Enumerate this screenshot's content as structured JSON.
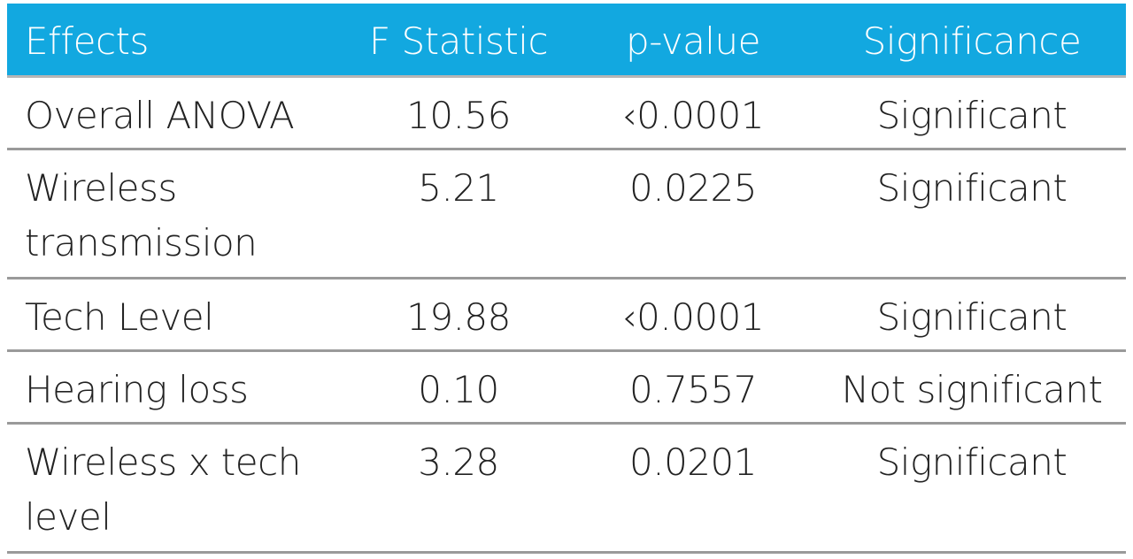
{
  "table": {
    "header": {
      "effects": "Effects",
      "f_statistic": "F Statistic",
      "p_value": "p-value",
      "significance": "Significance"
    },
    "rows": [
      {
        "effect": "Overall ANOVA",
        "f": "10.56",
        "p": "‹0.0001",
        "significance": "Significant"
      },
      {
        "effect": "Wireless transmission",
        "f": "5.21",
        "p": "0.0225",
        "significance": "Significant"
      },
      {
        "effect": "Tech Level",
        "f": "19.88",
        "p": "‹0.0001",
        "significance": "Significant"
      },
      {
        "effect": "Hearing loss",
        "f": "0.10",
        "p": "0.7557",
        "significance": "Not significant"
      },
      {
        "effect": "Wireless x tech level",
        "f": "3.28",
        "p": "0.0201",
        "significance": "Significant"
      }
    ],
    "colors": {
      "header_bg": "#12a8e0",
      "header_text": "#ffffff",
      "divider": "#9a9a9a",
      "body_text": "#222222"
    }
  }
}
